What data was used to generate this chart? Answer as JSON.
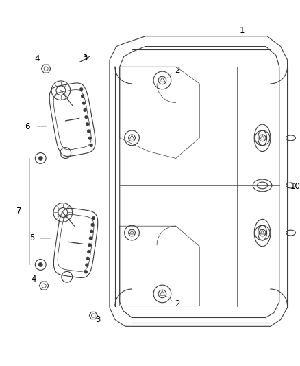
{
  "bg_color": "#ffffff",
  "line_color": "#3a3a3a",
  "label_color": "#000000",
  "fig_width": 4.38,
  "fig_height": 5.33,
  "dpi": 100
}
